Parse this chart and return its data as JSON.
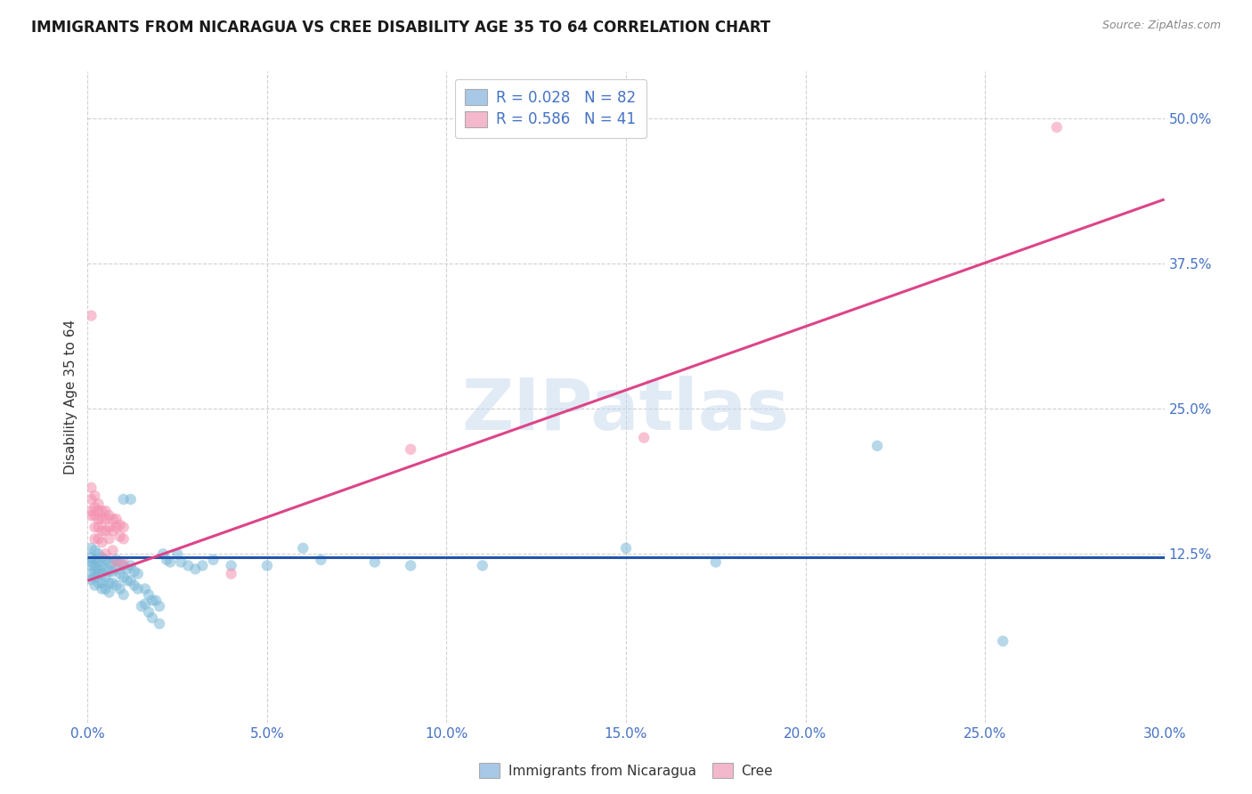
{
  "title": "IMMIGRANTS FROM NICARAGUA VS CREE DISABILITY AGE 35 TO 64 CORRELATION CHART",
  "source": "Source: ZipAtlas.com",
  "ylabel": "Disability Age 35 to 64",
  "xlim": [
    0.0,
    0.3
  ],
  "ylim": [
    -0.02,
    0.54
  ],
  "watermark": "ZIPatlas",
  "legend_entries": [
    {
      "label": "R = 0.028   N = 82",
      "color": "#a8c8e8"
    },
    {
      "label": "R = 0.586   N = 41",
      "color": "#f4b8cc"
    }
  ],
  "legend_bottom": [
    "Immigrants from Nicaragua",
    "Cree"
  ],
  "blue_color": "#7ab8d8",
  "pink_color": "#f490b0",
  "blue_line_color": "#2255aa",
  "pink_line_color": "#dd4488",
  "blue_scatter": [
    [
      0.001,
      0.13
    ],
    [
      0.001,
      0.122
    ],
    [
      0.001,
      0.118
    ],
    [
      0.001,
      0.115
    ],
    [
      0.001,
      0.108
    ],
    [
      0.001,
      0.103
    ],
    [
      0.002,
      0.128
    ],
    [
      0.002,
      0.12
    ],
    [
      0.002,
      0.115
    ],
    [
      0.002,
      0.11
    ],
    [
      0.002,
      0.105
    ],
    [
      0.002,
      0.098
    ],
    [
      0.003,
      0.125
    ],
    [
      0.003,
      0.118
    ],
    [
      0.003,
      0.112
    ],
    [
      0.003,
      0.108
    ],
    [
      0.003,
      0.1
    ],
    [
      0.004,
      0.122
    ],
    [
      0.004,
      0.115
    ],
    [
      0.004,
      0.108
    ],
    [
      0.004,
      0.1
    ],
    [
      0.004,
      0.095
    ],
    [
      0.005,
      0.12
    ],
    [
      0.005,
      0.112
    ],
    [
      0.005,
      0.105
    ],
    [
      0.005,
      0.095
    ],
    [
      0.006,
      0.118
    ],
    [
      0.006,
      0.11
    ],
    [
      0.006,
      0.1
    ],
    [
      0.006,
      0.092
    ],
    [
      0.007,
      0.118
    ],
    [
      0.007,
      0.11
    ],
    [
      0.007,
      0.1
    ],
    [
      0.008,
      0.12
    ],
    [
      0.008,
      0.112
    ],
    [
      0.008,
      0.098
    ],
    [
      0.009,
      0.118
    ],
    [
      0.009,
      0.108
    ],
    [
      0.009,
      0.095
    ],
    [
      0.01,
      0.115
    ],
    [
      0.01,
      0.105
    ],
    [
      0.01,
      0.09
    ],
    [
      0.011,
      0.112
    ],
    [
      0.011,
      0.102
    ],
    [
      0.012,
      0.115
    ],
    [
      0.012,
      0.102
    ],
    [
      0.013,
      0.11
    ],
    [
      0.013,
      0.098
    ],
    [
      0.014,
      0.108
    ],
    [
      0.014,
      0.095
    ],
    [
      0.015,
      0.08
    ],
    [
      0.016,
      0.095
    ],
    [
      0.016,
      0.082
    ],
    [
      0.017,
      0.09
    ],
    [
      0.017,
      0.075
    ],
    [
      0.018,
      0.085
    ],
    [
      0.018,
      0.07
    ],
    [
      0.019,
      0.085
    ],
    [
      0.02,
      0.08
    ],
    [
      0.02,
      0.065
    ],
    [
      0.021,
      0.125
    ],
    [
      0.022,
      0.12
    ],
    [
      0.023,
      0.118
    ],
    [
      0.025,
      0.125
    ],
    [
      0.026,
      0.118
    ],
    [
      0.028,
      0.115
    ],
    [
      0.03,
      0.112
    ],
    [
      0.032,
      0.115
    ],
    [
      0.035,
      0.12
    ],
    [
      0.04,
      0.115
    ],
    [
      0.05,
      0.115
    ],
    [
      0.06,
      0.13
    ],
    [
      0.065,
      0.12
    ],
    [
      0.08,
      0.118
    ],
    [
      0.09,
      0.115
    ],
    [
      0.11,
      0.115
    ],
    [
      0.15,
      0.13
    ],
    [
      0.175,
      0.118
    ],
    [
      0.22,
      0.218
    ],
    [
      0.255,
      0.05
    ],
    [
      0.01,
      0.172
    ],
    [
      0.012,
      0.172
    ]
  ],
  "pink_scatter": [
    [
      0.001,
      0.33
    ],
    [
      0.001,
      0.182
    ],
    [
      0.001,
      0.172
    ],
    [
      0.001,
      0.162
    ],
    [
      0.001,
      0.158
    ],
    [
      0.002,
      0.175
    ],
    [
      0.002,
      0.165
    ],
    [
      0.002,
      0.158
    ],
    [
      0.002,
      0.148
    ],
    [
      0.002,
      0.138
    ],
    [
      0.003,
      0.168
    ],
    [
      0.003,
      0.162
    ],
    [
      0.003,
      0.155
    ],
    [
      0.003,
      0.148
    ],
    [
      0.003,
      0.138
    ],
    [
      0.004,
      0.162
    ],
    [
      0.004,
      0.155
    ],
    [
      0.004,
      0.145
    ],
    [
      0.004,
      0.135
    ],
    [
      0.005,
      0.162
    ],
    [
      0.005,
      0.155
    ],
    [
      0.005,
      0.145
    ],
    [
      0.005,
      0.125
    ],
    [
      0.006,
      0.158
    ],
    [
      0.006,
      0.148
    ],
    [
      0.006,
      0.138
    ],
    [
      0.007,
      0.155
    ],
    [
      0.007,
      0.145
    ],
    [
      0.007,
      0.128
    ],
    [
      0.008,
      0.155
    ],
    [
      0.008,
      0.148
    ],
    [
      0.008,
      0.118
    ],
    [
      0.009,
      0.15
    ],
    [
      0.009,
      0.14
    ],
    [
      0.01,
      0.148
    ],
    [
      0.01,
      0.138
    ],
    [
      0.01,
      0.118
    ],
    [
      0.04,
      0.108
    ],
    [
      0.09,
      0.215
    ],
    [
      0.155,
      0.225
    ],
    [
      0.27,
      0.492
    ]
  ],
  "blue_trendline": [
    [
      0.0,
      0.122
    ],
    [
      0.3,
      0.122
    ]
  ],
  "pink_trendline": [
    [
      0.0,
      0.102
    ],
    [
      0.3,
      0.43
    ]
  ],
  "grid_color": "#cccccc",
  "background_color": "#ffffff",
  "title_fontsize": 12,
  "axis_label_fontsize": 11,
  "tick_fontsize": 11,
  "dot_size": 80,
  "dot_alpha": 0.55
}
